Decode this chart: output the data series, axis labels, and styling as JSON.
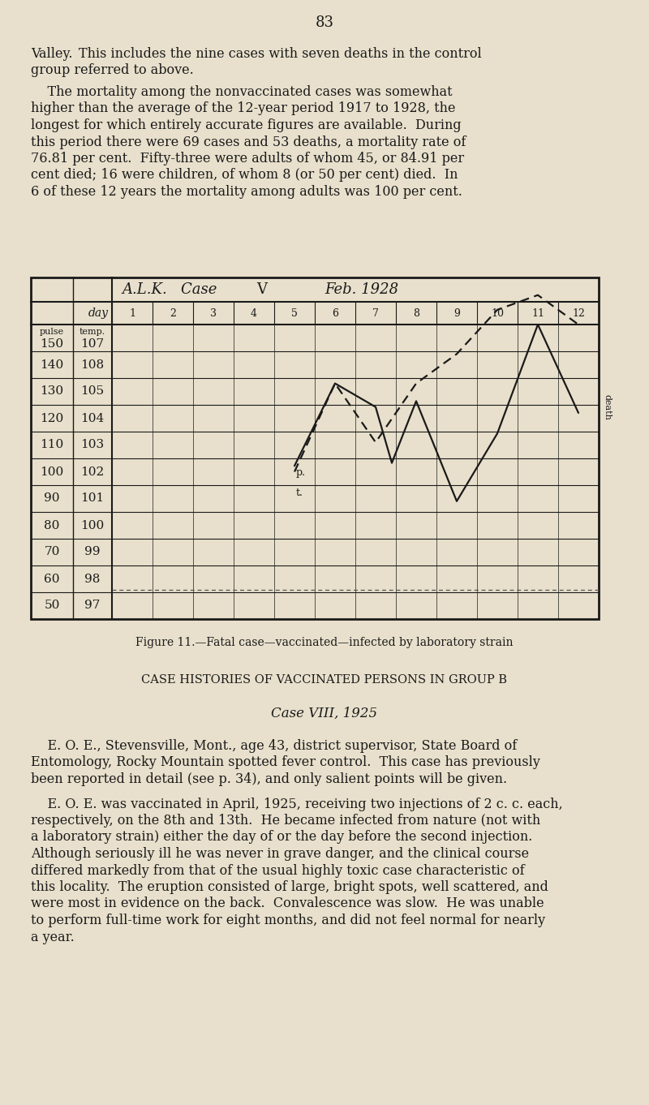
{
  "page_number": "83",
  "bg_color": "#e8e0cc",
  "text_color": "#1a1a1a",
  "figure_caption": "Figure 11.—Fatal case—vaccinated—infected by laboratory strain",
  "section_header": "CASE HISTORIES OF VACCINATED PERSONS IN GROUP B",
  "case_header": "Case VIII, 1925",
  "pulse_vals": [
    150,
    140,
    130,
    120,
    110,
    100,
    90,
    80,
    70,
    60,
    50
  ],
  "temp_vals": [
    107,
    108,
    105,
    104,
    103,
    102,
    101,
    100,
    99,
    98,
    97
  ],
  "pulse_days": [
    5,
    6,
    7,
    7.4,
    8,
    9,
    10,
    11,
    12
  ],
  "pulse_values": [
    102,
    130,
    122,
    103,
    124,
    90,
    113,
    150,
    120
  ],
  "temp_days": [
    5,
    6,
    7,
    8,
    9,
    10,
    11,
    12
  ],
  "temp_values": [
    102,
    105,
    103,
    105,
    106,
    107.5,
    108,
    107
  ]
}
